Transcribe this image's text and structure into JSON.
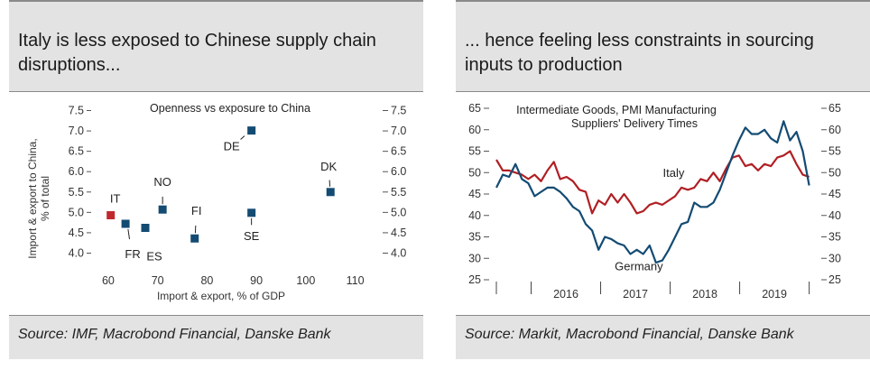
{
  "left": {
    "title": "Italy is less exposed to Chinese supply chain disruptions...",
    "source": "Source: IMF, Macrobond Financial, Danske Bank",
    "chart_data": {
      "type": "scatter",
      "title": "Openness vs exposure to China",
      "xlabel": "Import & export, % of GDP",
      "ylabel": "Import & export to China, % of total",
      "xlim": [
        58,
        113
      ],
      "ylim": [
        3.9,
        7.6
      ],
      "x_ticks": [
        "60",
        "70",
        "80",
        "90",
        "100",
        "110"
      ],
      "y_ticks": [
        "4.0",
        "4.5",
        "5.0",
        "5.5",
        "6.0",
        "6.5",
        "7.0",
        "7.5"
      ],
      "y2_ticks": [
        "4.0",
        "4.5",
        "5.0",
        "5.5",
        "6.0",
        "6.5",
        "7.0",
        "7.5"
      ],
      "points": [
        {
          "label": "IT",
          "x": 60.5,
          "y": 4.93,
          "color": "#c0282d"
        },
        {
          "label": "FR",
          "x": 63.5,
          "y": 4.72,
          "color": "#134b73"
        },
        {
          "label": "ES",
          "x": 67.5,
          "y": 4.62,
          "color": "#134b73"
        },
        {
          "label": "NO",
          "x": 71.0,
          "y": 5.07,
          "color": "#134b73"
        },
        {
          "label": "FI",
          "x": 77.5,
          "y": 4.36,
          "color": "#134b73"
        },
        {
          "label": "SE",
          "x": 89.0,
          "y": 4.99,
          "color": "#134b73"
        },
        {
          "label": "DE",
          "x": 89.0,
          "y": 7.01,
          "color": "#134b73"
        },
        {
          "label": "DK",
          "x": 105.0,
          "y": 5.5,
          "color": "#134b73"
        }
      ]
    }
  },
  "right": {
    "title": "... hence feeling less constraints in sourcing inputs to production",
    "source": "Source: Markit, Macrobond Financial, Danske Bank",
    "chart_data": {
      "type": "line",
      "title": "Intermediate Goods, PMI Manufacturing Suppliers' Delivery Times",
      "title_lines": [
        "Intermediate Goods, PMI Manufacturing",
        "Suppliers' Delivery Times"
      ],
      "x_start": 2015.5,
      "x_end": 2020.0,
      "xlim": [
        2015.5,
        2020.083
      ],
      "ylim": [
        25,
        65
      ],
      "x_ticks": [
        "2016",
        "2017",
        "2018",
        "2019"
      ],
      "y_ticks": [
        "25",
        "30",
        "35",
        "40",
        "45",
        "50",
        "55",
        "60",
        "65"
      ],
      "y2_ticks": [
        "25",
        "30",
        "35",
        "40",
        "45",
        "50",
        "55",
        "60",
        "65"
      ],
      "series": [
        {
          "name": "Italy",
          "color": "#b01f24",
          "values": [
            53.0,
            50.5,
            50.5,
            50.0,
            49.5,
            48.5,
            49.5,
            48.0,
            50.5,
            52.5,
            48.5,
            49.0,
            48.0,
            46.0,
            45.5,
            40.5,
            43.5,
            42.5,
            45.0,
            43.0,
            45.0,
            43.0,
            40.5,
            41.0,
            42.5,
            43.0,
            42.5,
            43.5,
            44.5,
            46.5,
            46.0,
            46.5,
            48.5,
            48.0,
            50.0,
            48.0,
            51.0,
            53.5,
            54.0,
            51.5,
            52.0,
            50.5,
            52.0,
            51.5,
            53.5,
            54.0,
            55.0,
            52.0,
            49.5,
            49.0
          ]
        },
        {
          "name": "Germany",
          "color": "#134b73",
          "values": [
            46.5,
            49.5,
            49.0,
            52.0,
            48.5,
            47.5,
            44.5,
            45.5,
            46.5,
            46.5,
            45.5,
            44.0,
            42.0,
            41.0,
            38.0,
            36.5,
            32.0,
            35.0,
            34.5,
            33.5,
            33.0,
            31.0,
            32.0,
            31.0,
            33.0,
            29.0,
            29.5,
            32.0,
            35.0,
            38.0,
            38.5,
            43.0,
            42.0,
            42.0,
            43.0,
            46.0,
            50.0,
            54.0,
            57.5,
            60.5,
            59.0,
            59.0,
            60.0,
            58.0,
            57.0,
            62.0,
            57.5,
            59.5,
            55.0,
            47.0
          ]
        }
      ]
    }
  }
}
